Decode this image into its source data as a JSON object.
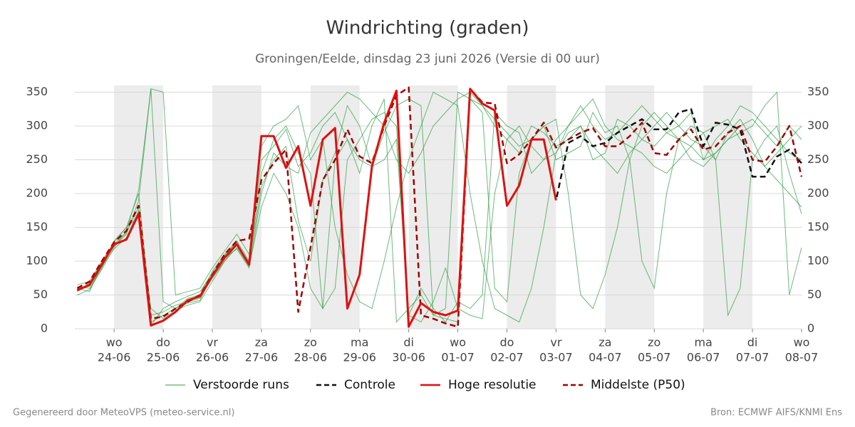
{
  "chart_data": {
    "type": "line",
    "title": "Windrichting (graden)",
    "subtitle": "Groningen/Eelde, dinsdag 23 juni 2026 (Versie di 00 uur)",
    "footer_left": "Gegenereerd door MeteoVPS (meteo-service.nl)",
    "footer_right": "Bron: ECMWF AIFS/KNMI Ens",
    "x": [
      -0.75,
      -0.5,
      -0.25,
      0,
      0.25,
      0.5,
      0.75,
      1,
      1.25,
      1.5,
      1.75,
      2,
      2.25,
      2.5,
      2.75,
      3,
      3.25,
      3.5,
      3.75,
      4,
      4.25,
      4.5,
      4.75,
      5,
      5.25,
      5.5,
      5.75,
      6,
      6.25,
      6.5,
      6.75,
      7,
      7.25,
      7.5,
      7.75,
      8,
      8.25,
      8.5,
      8.75,
      9,
      9.25,
      9.5,
      9.75,
      10,
      10.25,
      10.5,
      10.75,
      11,
      11.25,
      11.5,
      11.75,
      12,
      12.25,
      12.5,
      12.75,
      13,
      13.25,
      13.5,
      13.75,
      14
    ],
    "xlim": [
      -0.8,
      14
    ],
    "xticks": [
      {
        "value": 0,
        "label": "24-06",
        "weekday": "wo"
      },
      {
        "value": 1,
        "label": "25-06",
        "weekday": "do"
      },
      {
        "value": 2,
        "label": "26-06",
        "weekday": "vr"
      },
      {
        "value": 3,
        "label": "27-06",
        "weekday": "za"
      },
      {
        "value": 4,
        "label": "28-06",
        "weekday": "zo"
      },
      {
        "value": 5,
        "label": "29-06",
        "weekday": "ma"
      },
      {
        "value": 6,
        "label": "30-06",
        "weekday": "di"
      },
      {
        "value": 7,
        "label": "01-07",
        "weekday": "wo"
      },
      {
        "value": 8,
        "label": "02-07",
        "weekday": "do"
      },
      {
        "value": 9,
        "label": "03-07",
        "weekday": "vr"
      },
      {
        "value": 10,
        "label": "04-07",
        "weekday": "za"
      },
      {
        "value": 11,
        "label": "05-07",
        "weekday": "zo"
      },
      {
        "value": 12,
        "label": "06-07",
        "weekday": "ma"
      },
      {
        "value": 13,
        "label": "07-07",
        "weekday": "di"
      },
      {
        "value": 14,
        "label": "08-07",
        "weekday": "wo"
      }
    ],
    "ylim": [
      0,
      360
    ],
    "yticks": [
      0,
      50,
      100,
      150,
      200,
      250,
      300,
      350
    ],
    "grid": true,
    "legend": "bottom",
    "ensemble": {
      "name": "Verstoorde runs",
      "color": "#2e9e44",
      "runs": [
        [
          55,
          68,
          98,
          122,
          140,
          190,
          355,
          40,
          30,
          45,
          50,
          85,
          110,
          130,
          100,
          250,
          270,
          295,
          240,
          260,
          300,
          320,
          280,
          250,
          240,
          290,
          330,
          340,
          330,
          20,
          30,
          350,
          340,
          330,
          300,
          280,
          260,
          300,
          290,
          270,
          280,
          300,
          250,
          260,
          310,
          300,
          280,
          270,
          290,
          300,
          320,
          250,
          260,
          280,
          300,
          310,
          290,
          270,
          300,
          280
        ],
        [
          62,
          60,
          90,
          130,
          150,
          200,
          20,
          25,
          35,
          40,
          45,
          75,
          100,
          120,
          92,
          180,
          230,
          200,
          150,
          60,
          30,
          250,
          280,
          230,
          300,
          340,
          10,
          30,
          50,
          20,
          15,
          10,
          340,
          320,
          60,
          40,
          230,
          280,
          300,
          250,
          260,
          270,
          320,
          290,
          300,
          250,
          100,
          60,
          200,
          280,
          300,
          290,
          250,
          20,
          60,
          250,
          280,
          300,
          230,
          170
        ],
        [
          58,
          63,
          92,
          118,
          135,
          175,
          30,
          15,
          28,
          35,
          40,
          70,
          100,
          125,
          98,
          210,
          250,
          270,
          160,
          100,
          220,
          260,
          330,
          300,
          240,
          250,
          280,
          20,
          10,
          40,
          90,
          30,
          20,
          15,
          200,
          280,
          300,
          270,
          250,
          260,
          290,
          300,
          270,
          250,
          230,
          260,
          280,
          300,
          320,
          300,
          280,
          270,
          250,
          290,
          310,
          280,
          240,
          260,
          280,
          300
        ],
        [
          50,
          58,
          88,
          120,
          145,
          205,
          355,
          350,
          50,
          55,
          60,
          90,
          115,
          140,
          110,
          270,
          300,
          310,
          330,
          250,
          280,
          150,
          80,
          40,
          30,
          100,
          180,
          250,
          300,
          350,
          340,
          330,
          200,
          100,
          30,
          20,
          10,
          60,
          150,
          260,
          300,
          330,
          300,
          280,
          290,
          310,
          330,
          310,
          290,
          280,
          270,
          250,
          280,
          300,
          330,
          320,
          300,
          280,
          260,
          250
        ],
        [
          65,
          70,
          100,
          128,
          150,
          165,
          10,
          20,
          30,
          38,
          42,
          80,
          105,
          118,
          90,
          200,
          260,
          240,
          230,
          290,
          310,
          330,
          350,
          340,
          320,
          300,
          250,
          230,
          260,
          300,
          320,
          340,
          350,
          330,
          310,
          290,
          270,
          280,
          300,
          310,
          200,
          50,
          30,
          80,
          150,
          250,
          300,
          320,
          300,
          280,
          250,
          240,
          260,
          280,
          290,
          300,
          330,
          350,
          50,
          120
        ],
        [
          60,
          55,
          95,
          125,
          142,
          180,
          5,
          30,
          40,
          48,
          55,
          82,
          108,
          128,
          96,
          230,
          280,
          300,
          260,
          230,
          30,
          60,
          250,
          280,
          310,
          320,
          300,
          20,
          60,
          30,
          10,
          40,
          30,
          50,
          320,
          300,
          290,
          230,
          250,
          280,
          300,
          320,
          340,
          300,
          280,
          270,
          260,
          240,
          230,
          250,
          270,
          290,
          300,
          310,
          280,
          260,
          240,
          220,
          200,
          180
        ]
      ]
    },
    "series": [
      {
        "name": "Controle",
        "color": "#111111",
        "dash": true,
        "values": [
          57,
          65,
          95,
          125,
          132,
          170,
          5,
          12,
          25,
          42,
          48,
          78,
          105,
          125,
          95,
          285,
          285,
          238,
          270,
          182,
          280,
          297,
          30,
          80,
          240,
          305,
          352,
          3,
          38,
          25,
          20,
          27,
          355,
          333,
          323,
          182,
          212,
          280,
          280,
          190,
          275,
          285,
          270,
          275,
          290,
          300,
          310,
          295,
          295,
          320,
          325,
          270,
          305,
          302,
          295,
          225,
          225,
          255,
          265,
          245
        ]
      },
      {
        "name": "Hoge resolutie",
        "color": "#e01010",
        "dash": false,
        "values": [
          57,
          65,
          95,
          125,
          132,
          170,
          5,
          12,
          25,
          42,
          48,
          78,
          105,
          125,
          95,
          285,
          285,
          238,
          270,
          182,
          280,
          297,
          30,
          80,
          240,
          305,
          352,
          3,
          38,
          25,
          20,
          27,
          355,
          333,
          323,
          182,
          212,
          280,
          280,
          190,
          null,
          null,
          null,
          null,
          null,
          null,
          null,
          null,
          null,
          null,
          null,
          null,
          null,
          null,
          null,
          null,
          null,
          null,
          null,
          null
        ]
      },
      {
        "name": "Middelste (P50)",
        "color": "#a00000",
        "dash": true,
        "values": [
          60,
          70,
          100,
          128,
          145,
          182,
          15,
          18,
          30,
          40,
          50,
          80,
          110,
          130,
          133,
          220,
          245,
          265,
          25,
          120,
          220,
          250,
          295,
          255,
          245,
          300,
          345,
          357,
          20,
          15,
          8,
          3,
          355,
          335,
          333,
          245,
          258,
          280,
          305,
          268,
          280,
          290,
          297,
          270,
          270,
          285,
          305,
          260,
          257,
          280,
          295,
          265,
          270,
          290,
          300,
          250,
          247,
          270,
          300,
          225
        ]
      }
    ]
  }
}
